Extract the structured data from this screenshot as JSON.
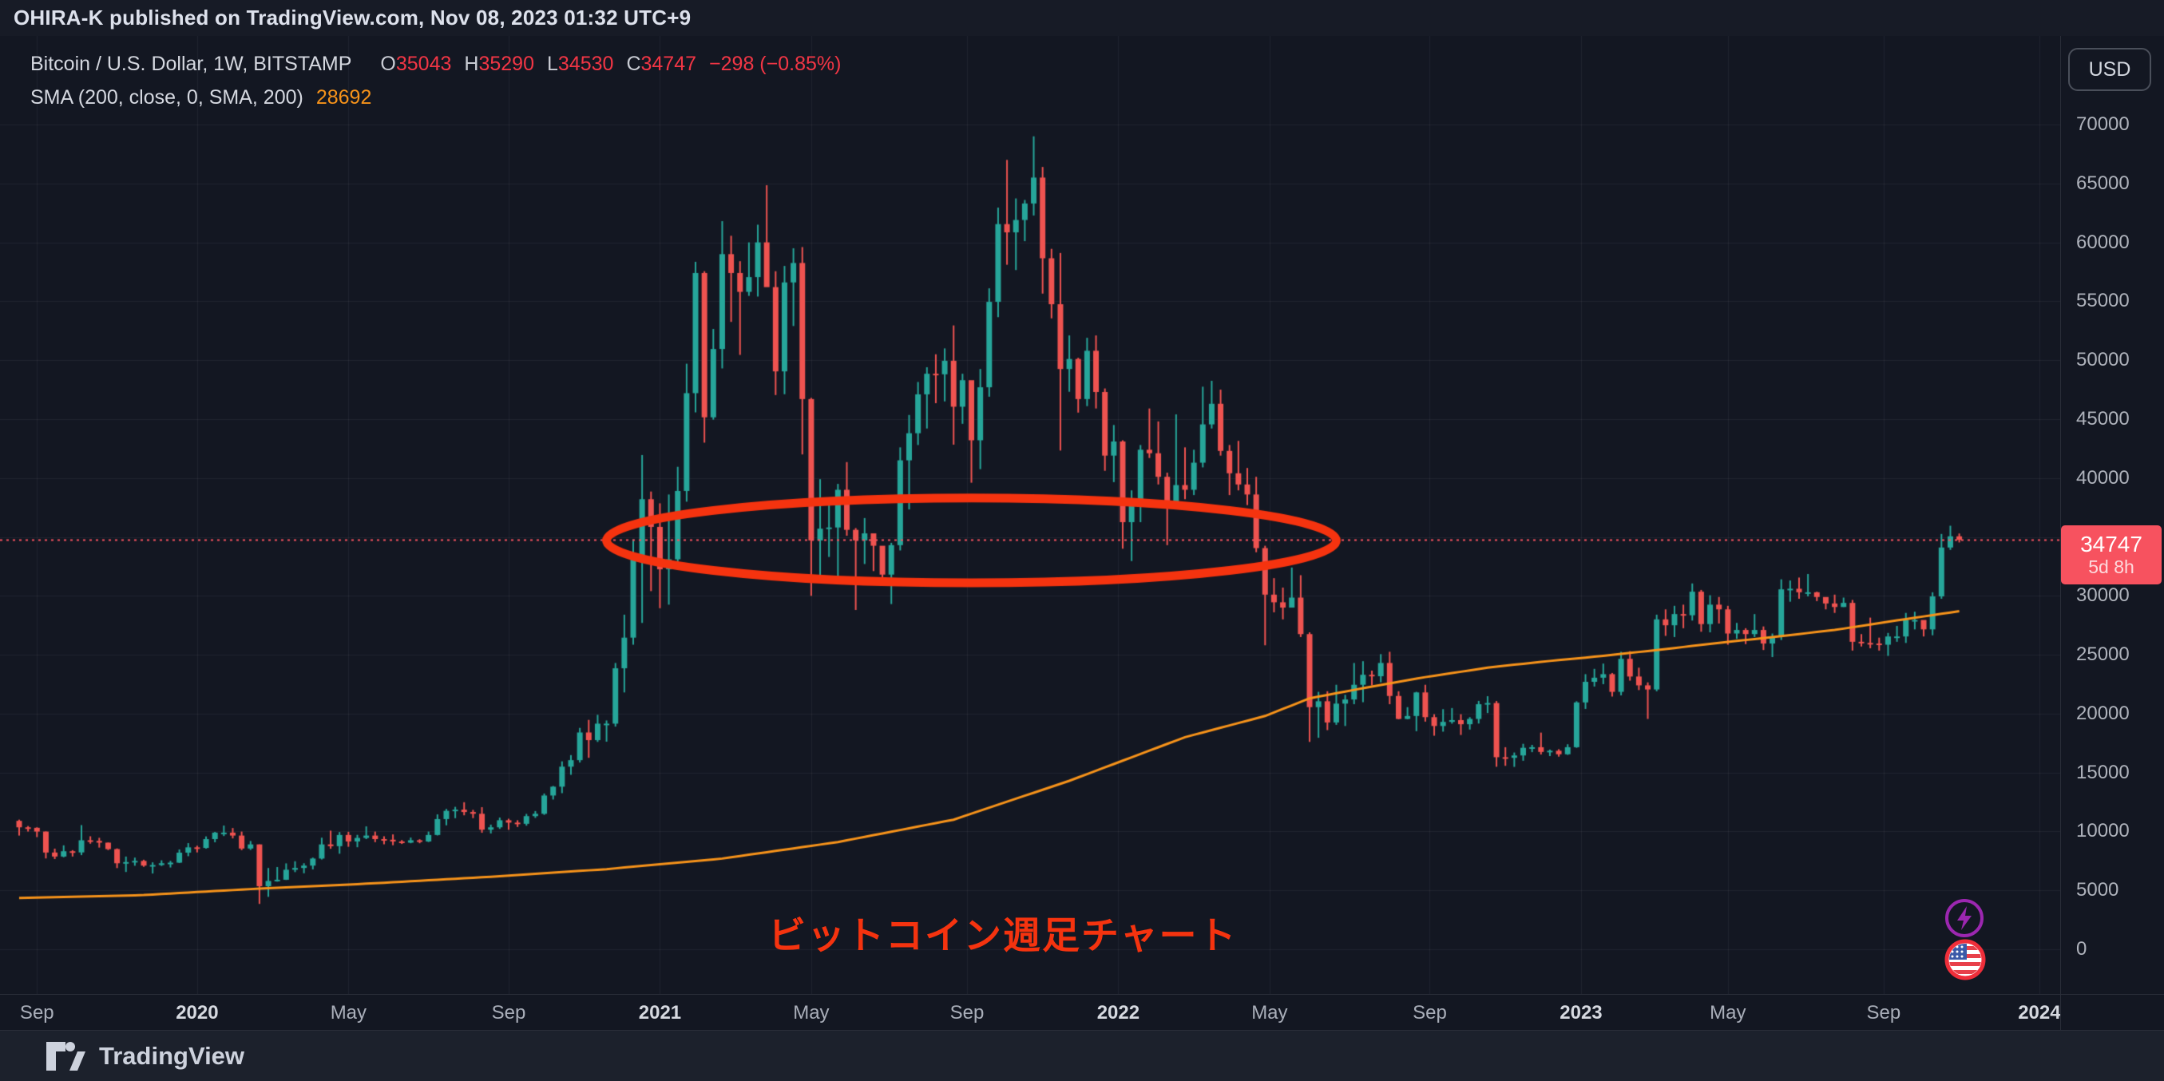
{
  "header": {
    "publish_line": "OHIRA-K published on TradingView.com, Nov 08, 2023 01:32 UTC+9"
  },
  "legend": {
    "symbol": "Bitcoin / U.S. Dollar, 1W, BITSTAMP",
    "ohlc": {
      "o_label": "O",
      "o_value": "35043",
      "h_label": "H",
      "h_value": "35290",
      "l_label": "L",
      "l_value": "34530",
      "c_label": "C",
      "c_value": "34747",
      "change": "−298 (−0.85%)"
    },
    "indicator": {
      "label": "SMA (200, close, 0, SMA, 200)",
      "value": "28692"
    }
  },
  "price_axis": {
    "currency_button": "USD",
    "ticks": [
      "70000",
      "65000",
      "60000",
      "55000",
      "50000",
      "45000",
      "40000",
      "30000",
      "25000",
      "20000",
      "15000",
      "10000",
      "5000",
      "0"
    ],
    "price_label": {
      "price": "34747",
      "countdown": "5d 8h"
    }
  },
  "time_axis": {
    "ticks": [
      {
        "label": "Sep",
        "week": 2,
        "major": false
      },
      {
        "label": "2020",
        "week": 20,
        "major": true
      },
      {
        "label": "May",
        "week": 37,
        "major": false
      },
      {
        "label": "Sep",
        "week": 55,
        "major": false
      },
      {
        "label": "2021",
        "week": 72,
        "major": true
      },
      {
        "label": "May",
        "week": 89,
        "major": false
      },
      {
        "label": "Sep",
        "week": 106.5,
        "major": false
      },
      {
        "label": "2022",
        "week": 123.5,
        "major": true
      },
      {
        "label": "May",
        "week": 140.5,
        "major": false
      },
      {
        "label": "Sep",
        "week": 158.5,
        "major": false
      },
      {
        "label": "2023",
        "week": 175.5,
        "major": true
      },
      {
        "label": "May",
        "week": 192,
        "major": false
      },
      {
        "label": "Sep",
        "week": 209.5,
        "major": false
      },
      {
        "label": "2024",
        "week": 227,
        "major": true
      }
    ]
  },
  "annotations": {
    "callout_text": "ビットコイン週足チャート",
    "ellipse": {
      "week_start": 66,
      "week_end": 148,
      "price_top": 38300,
      "price_bottom": 31100
    }
  },
  "footer": {
    "brand": "TradingView"
  },
  "colors": {
    "up": "#26a69a",
    "down": "#ef5350",
    "sma": "#f7931a",
    "price_line": "#f7525f",
    "annotation": "#f5330f",
    "grid": "rgba(240,243,250,0.06)",
    "background": "#131722"
  },
  "chart_data": {
    "type": "candlestick",
    "title": "Bitcoin / U.S. Dollar, 1W, BITSTAMP",
    "x_range": "weekly bars, Sep 2019 - Nov 2023 (219 weeks), axis extends to Jan 2024",
    "y_axis": {
      "min": 0,
      "max": 70000,
      "grid_step": 5000,
      "grid": true
    },
    "current_price": 34747,
    "sma_period": 200,
    "sma_current": 28692,
    "first_open": 10900,
    "sma_points": [
      [
        0,
        4350
      ],
      [
        14,
        4600
      ],
      [
        27,
        5150
      ],
      [
        40,
        5600
      ],
      [
        53,
        6150
      ],
      [
        66,
        6800
      ],
      [
        79,
        7700
      ],
      [
        92,
        9100
      ],
      [
        105,
        11000
      ],
      [
        118,
        14300
      ],
      [
        131,
        18000
      ],
      [
        140,
        19800
      ],
      [
        145,
        21300
      ],
      [
        152,
        22300
      ],
      [
        158,
        23100
      ],
      [
        165,
        23900
      ],
      [
        171,
        24400
      ],
      [
        178,
        24900
      ],
      [
        184,
        25400
      ],
      [
        191,
        26000
      ],
      [
        197,
        26500
      ],
      [
        204,
        27100
      ],
      [
        210,
        27800
      ],
      [
        214,
        28250
      ],
      [
        218,
        28692
      ]
    ],
    "candles_hlc": [
      [
        11000,
        9650,
        10350
      ],
      [
        10460,
        9990,
        10310
      ],
      [
        10350,
        9520,
        9990
      ],
      [
        10000,
        7710,
        8210
      ],
      [
        8540,
        7660,
        7870
      ],
      [
        8820,
        7810,
        8320
      ],
      [
        8410,
        7870,
        8220
      ],
      [
        10540,
        7990,
        9250
      ],
      [
        9590,
        8960,
        9200
      ],
      [
        9460,
        8630,
        9050
      ],
      [
        9060,
        8420,
        8500
      ],
      [
        8560,
        6890,
        7300
      ],
      [
        7870,
        6560,
        7400
      ],
      [
        7780,
        7090,
        7500
      ],
      [
        7600,
        7000,
        7100
      ],
      [
        7380,
        6430,
        7150
      ],
      [
        7550,
        7070,
        7300
      ],
      [
        7500,
        6940,
        7350
      ],
      [
        8470,
        7320,
        8200
      ],
      [
        9010,
        7900,
        8650
      ],
      [
        8790,
        8220,
        8600
      ],
      [
        9580,
        8540,
        9350
      ],
      [
        9960,
        9080,
        9900
      ],
      [
        10500,
        9610,
        9900
      ],
      [
        10290,
        9410,
        9650
      ],
      [
        9990,
        8420,
        8550
      ],
      [
        9190,
        8430,
        8900
      ],
      [
        8900,
        3850,
        5350
      ],
      [
        6900,
        4450,
        5800
      ],
      [
        6980,
        5740,
        5900
      ],
      [
        7290,
        5880,
        6750
      ],
      [
        7470,
        6550,
        6900
      ],
      [
        7300,
        6450,
        7100
      ],
      [
        7780,
        6780,
        7700
      ],
      [
        9470,
        7620,
        8900
      ],
      [
        10070,
        8530,
        8750
      ],
      [
        9950,
        8110,
        9700
      ],
      [
        9970,
        8700,
        9150
      ],
      [
        9710,
        8660,
        9450
      ],
      [
        10430,
        9350,
        9650
      ],
      [
        9990,
        9090,
        9350
      ],
      [
        9590,
        8910,
        9300
      ],
      [
        9750,
        8830,
        9150
      ],
      [
        9270,
        8940,
        9050
      ],
      [
        9480,
        9000,
        9250
      ],
      [
        9340,
        9000,
        9150
      ],
      [
        9990,
        9100,
        9700
      ],
      [
        11450,
        9660,
        11050
      ],
      [
        11910,
        10520,
        11750
      ],
      [
        12090,
        11125,
        11850
      ],
      [
        12480,
        11370,
        11650
      ],
      [
        11830,
        11130,
        11500
      ],
      [
        12060,
        9890,
        10150
      ],
      [
        10580,
        9830,
        10350
      ],
      [
        11180,
        10220,
        10950
      ],
      [
        11080,
        10140,
        10750
      ],
      [
        10950,
        10380,
        10650
      ],
      [
        11490,
        10490,
        11300
      ],
      [
        11730,
        11150,
        11500
      ],
      [
        13220,
        11410,
        13050
      ],
      [
        13860,
        12710,
        13800
      ],
      [
        15950,
        13250,
        15500
      ],
      [
        16480,
        14810,
        16050
      ],
      [
        18790,
        15850,
        18400
      ],
      [
        19470,
        16250,
        17750
      ],
      [
        19900,
        17600,
        19150
      ],
      [
        19420,
        17620,
        19150
      ],
      [
        24300,
        18900,
        23850
      ],
      [
        28400,
        21800,
        26450
      ],
      [
        34800,
        25850,
        33100
      ],
      [
        41950,
        27700,
        38200
      ],
      [
        38850,
        30400,
        35850
      ],
      [
        37850,
        28950,
        32250
      ],
      [
        38600,
        29250,
        33100
      ],
      [
        40950,
        32300,
        38900
      ],
      [
        49700,
        37990,
        47200
      ],
      [
        58350,
        45570,
        57400
      ],
      [
        57550,
        43000,
        45150
      ],
      [
        52650,
        44950,
        50950
      ],
      [
        61800,
        49300,
        59000
      ],
      [
        60560,
        53250,
        57400
      ],
      [
        58400,
        50450,
        55800
      ],
      [
        60000,
        55460,
        57050
      ],
      [
        61500,
        55400,
        60000
      ],
      [
        64850,
        59600,
        56200
      ],
      [
        57550,
        47040,
        49050
      ],
      [
        58000,
        47110,
        56600
      ],
      [
        59500,
        52900,
        58250
      ],
      [
        59600,
        42000,
        46700
      ],
      [
        46800,
        30000,
        34700
      ],
      [
        39900,
        31100,
        35700
      ],
      [
        37900,
        33300,
        35800
      ],
      [
        39500,
        31000,
        39000
      ],
      [
        41350,
        35100,
        35600
      ],
      [
        35750,
        28800,
        34700
      ],
      [
        36600,
        32700,
        35300
      ],
      [
        35100,
        32100,
        34250
      ],
      [
        34000,
        31000,
        31800
      ],
      [
        34500,
        29300,
        34300
      ],
      [
        42600,
        33850,
        41500
      ],
      [
        45350,
        37330,
        43800
      ],
      [
        48150,
        42800,
        47100
      ],
      [
        49400,
        44200,
        48850
      ],
      [
        50500,
        46350,
        48800
      ],
      [
        51000,
        46500,
        49950
      ],
      [
        52950,
        42830,
        46050
      ],
      [
        48850,
        44600,
        48300
      ],
      [
        47350,
        39600,
        43200
      ],
      [
        49250,
        40750,
        47700
      ],
      [
        56100,
        46900,
        54950
      ],
      [
        62950,
        53650,
        61550
      ],
      [
        67000,
        58100,
        60850
      ],
      [
        63730,
        57650,
        61900
      ],
      [
        63600,
        60100,
        63300
      ],
      [
        69000,
        62280,
        65500
      ],
      [
        66400,
        55650,
        58650
      ],
      [
        59450,
        53550,
        54750
      ],
      [
        59100,
        42330,
        49250
      ],
      [
        52100,
        47320,
        50100
      ],
      [
        50200,
        45550,
        46700
      ],
      [
        51900,
        46100,
        50800
      ],
      [
        52100,
        45900,
        47300
      ],
      [
        47600,
        40610,
        41900
      ],
      [
        44500,
        39650,
        43100
      ],
      [
        43200,
        34000,
        36250
      ],
      [
        38950,
        32950,
        38200
      ],
      [
        42800,
        36250,
        42400
      ],
      [
        45900,
        41700,
        42100
      ],
      [
        44800,
        39450,
        40100
      ],
      [
        40450,
        34300,
        37700
      ],
      [
        45400,
        37450,
        39400
      ],
      [
        42600,
        38200,
        39000
      ],
      [
        42400,
        38550,
        41300
      ],
      [
        47750,
        40900,
        44550
      ],
      [
        48250,
        44200,
        46300
      ],
      [
        47500,
        41900,
        42300
      ],
      [
        42800,
        38550,
        40400
      ],
      [
        43150,
        38950,
        39450
      ],
      [
        40850,
        37700,
        38600
      ],
      [
        40100,
        33700,
        34050
      ],
      [
        34250,
        25800,
        30100
      ],
      [
        31500,
        28600,
        29450
      ],
      [
        30700,
        28000,
        29000
      ],
      [
        32400,
        29300,
        29850
      ],
      [
        31750,
        26500,
        26750
      ],
      [
        26900,
        17600,
        20550
      ],
      [
        21850,
        17950,
        21050
      ],
      [
        21900,
        18600,
        19250
      ],
      [
        22450,
        19050,
        20850
      ],
      [
        21600,
        18950,
        21200
      ],
      [
        24300,
        20800,
        22450
      ],
      [
        24450,
        20970,
        23300
      ],
      [
        23650,
        22400,
        23175
      ],
      [
        25050,
        22660,
        24300
      ],
      [
        25250,
        20800,
        21500
      ],
      [
        21900,
        19520,
        19550
      ],
      [
        20550,
        19520,
        19800
      ],
      [
        21850,
        18510,
        21800
      ],
      [
        22450,
        19320,
        19700
      ],
      [
        19950,
        18125,
        18950
      ],
      [
        20380,
        18470,
        19300
      ],
      [
        20475,
        19150,
        19450
      ],
      [
        19950,
        18190,
        19100
      ],
      [
        19700,
        18650,
        19550
      ],
      [
        21080,
        19160,
        20800
      ],
      [
        21480,
        20050,
        20900
      ],
      [
        21070,
        15490,
        16300
      ],
      [
        17150,
        15570,
        16250
      ],
      [
        16700,
        15480,
        16450
      ],
      [
        17440,
        16000,
        17100
      ],
      [
        17350,
        16730,
        17150
      ],
      [
        18390,
        16530,
        16750
      ],
      [
        16950,
        16400,
        16850
      ],
      [
        16980,
        16350,
        16550
      ],
      [
        17400,
        16500,
        17150
      ],
      [
        21050,
        17100,
        20950
      ],
      [
        23350,
        20400,
        22700
      ],
      [
        23800,
        22300,
        23050
      ],
      [
        24250,
        22500,
        23350
      ],
      [
        23450,
        21450,
        21850
      ],
      [
        25250,
        21550,
        24650
      ],
      [
        25300,
        22800,
        23150
      ],
      [
        23900,
        22000,
        22400
      ],
      [
        22650,
        19550,
        22050
      ],
      [
        28400,
        21900,
        28000
      ],
      [
        28850,
        26600,
        27500
      ],
      [
        29150,
        26500,
        28450
      ],
      [
        29250,
        27250,
        28350
      ],
      [
        31050,
        27900,
        30350
      ],
      [
        30500,
        26950,
        27600
      ],
      [
        30050,
        26900,
        29250
      ],
      [
        29900,
        27650,
        28850
      ],
      [
        29150,
        25850,
        26800
      ],
      [
        27700,
        26350,
        27100
      ],
      [
        27250,
        25900,
        26750
      ],
      [
        28450,
        26500,
        27100
      ],
      [
        27400,
        25400,
        25950
      ],
      [
        26800,
        24800,
        26500
      ],
      [
        31400,
        26250,
        30550
      ],
      [
        31300,
        29500,
        30600
      ],
      [
        31550,
        29750,
        30300
      ],
      [
        31850,
        29950,
        30300
      ],
      [
        30350,
        29550,
        29900
      ],
      [
        29700,
        28850,
        29350
      ],
      [
        30100,
        28550,
        29050
      ],
      [
        29850,
        29050,
        29400
      ],
      [
        29650,
        25350,
        26100
      ],
      [
        26750,
        25700,
        26000
      ],
      [
        28150,
        25550,
        25950
      ],
      [
        26450,
        25350,
        25850
      ],
      [
        26850,
        24900,
        26550
      ],
      [
        27450,
        26100,
        26550
      ],
      [
        28550,
        26000,
        27950
      ],
      [
        28650,
        27150,
        27950
      ],
      [
        27750,
        26550,
        27150
      ],
      [
        30300,
        26650,
        29950
      ],
      [
        35250,
        29750,
        34100
      ],
      [
        35950,
        33900,
        35050
      ],
      [
        35290,
        34530,
        34747
      ]
    ]
  }
}
